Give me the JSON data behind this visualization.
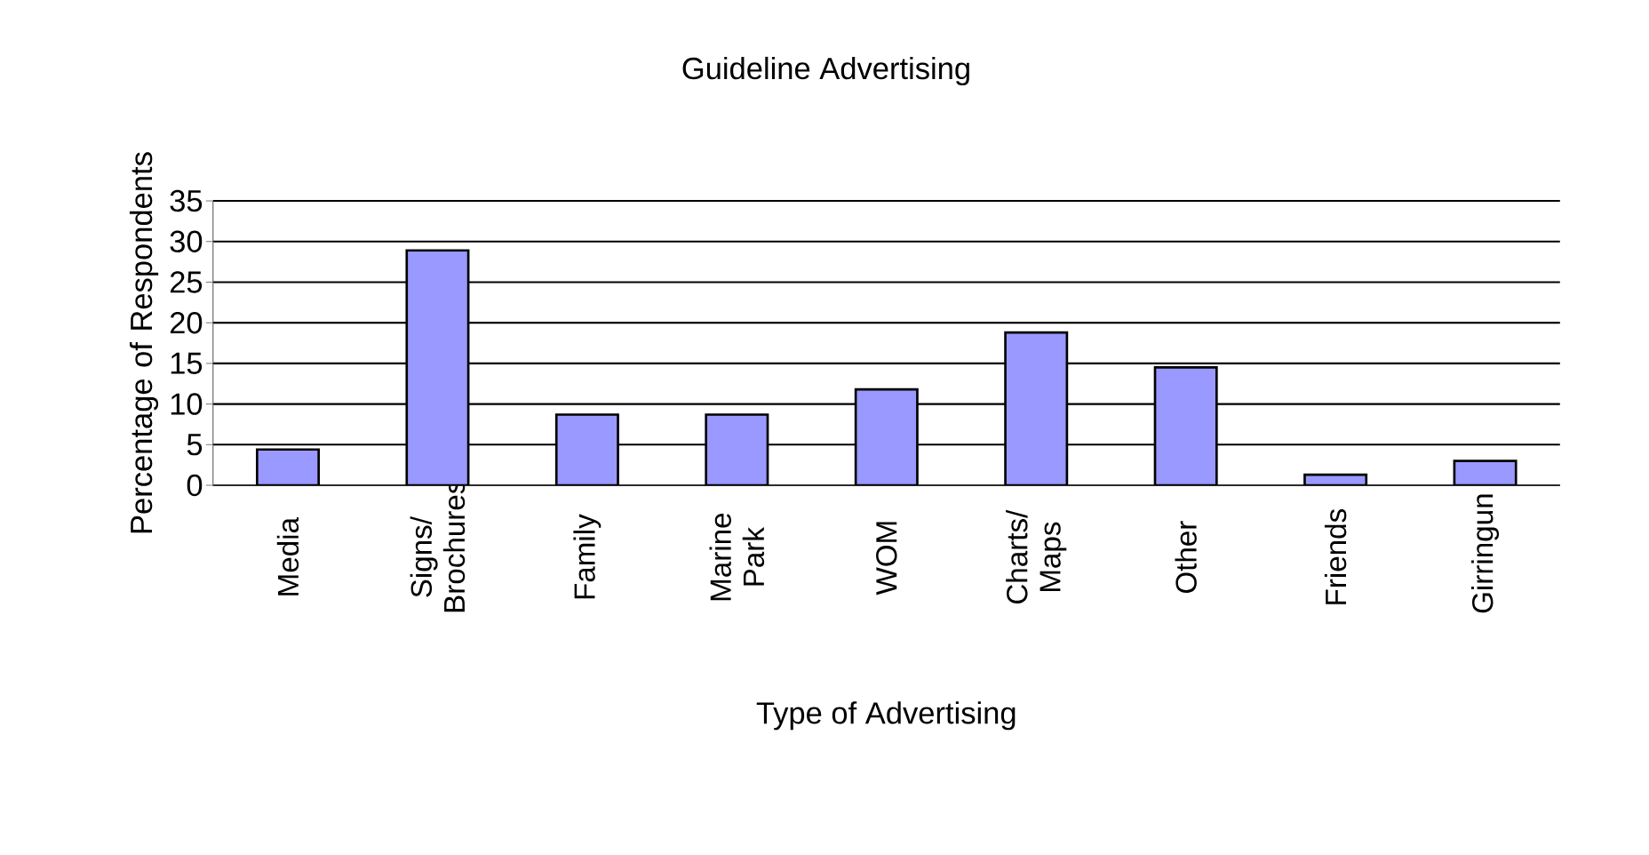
{
  "chart_data": {
    "type": "bar",
    "title": "Guideline Advertising",
    "xlabel": "Type of Advertising",
    "ylabel": "Percentage of Respondents",
    "categories": [
      "Media",
      "Signs/ Brochures",
      "Family",
      "Marine Park",
      "WOM",
      "Charts/ Maps",
      "Other",
      "Friends",
      "Girringun"
    ],
    "values": [
      4.4,
      28.9,
      8.7,
      8.7,
      11.8,
      18.8,
      14.5,
      1.3,
      3.0
    ],
    "color": "#9999ff",
    "ylim": [
      0,
      35
    ],
    "yticks": [
      0,
      5,
      10,
      15,
      20,
      25,
      30,
      35
    ],
    "grid": "y"
  }
}
